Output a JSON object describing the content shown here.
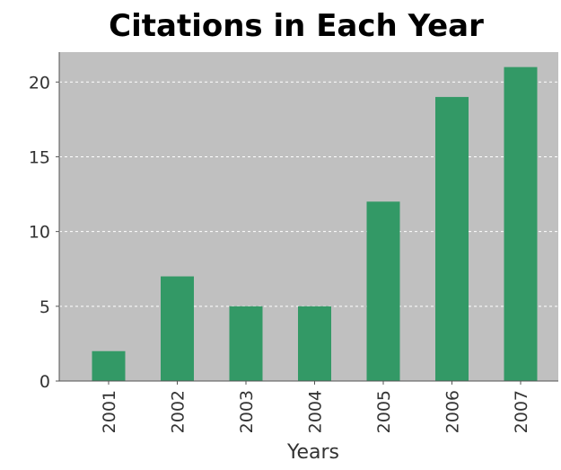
{
  "chart_data": {
    "type": "bar",
    "title": "Citations in Each Year",
    "xlabel": "Years",
    "ylabel": "",
    "categories": [
      "2001",
      "2002",
      "2003",
      "2004",
      "2005",
      "2006",
      "2007"
    ],
    "values": [
      2,
      7,
      5,
      5,
      12,
      19,
      21
    ],
    "ylim": [
      0,
      22
    ],
    "yticks": [
      0,
      5,
      10,
      15,
      20
    ],
    "grid": true,
    "legend": "none",
    "bar_color": "#339966",
    "plot_background": "#c0c0c0"
  }
}
